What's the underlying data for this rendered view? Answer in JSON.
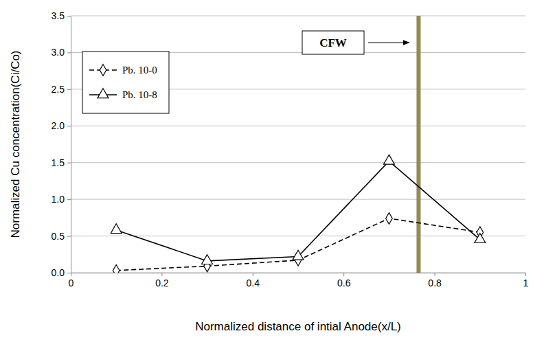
{
  "chart_data": {
    "type": "line",
    "x_label": "Normalized distance of intial Anode(x/L)",
    "y_label": "Normalized Cu concentration(Ci/Co)",
    "x": [
      0.1,
      0.3,
      0.5,
      0.7,
      0.9
    ],
    "series": [
      {
        "name": "Pb. 10-0",
        "color": "#000000",
        "marker": "diamond",
        "line_style": "dashed",
        "values": [
          0.03,
          0.09,
          0.17,
          0.74,
          0.55
        ]
      },
      {
        "name": "Pb. 10-8",
        "color": "#000000",
        "marker": "triangle",
        "line_style": "solid",
        "values": [
          0.58,
          0.16,
          0.22,
          1.52,
          0.45
        ]
      }
    ],
    "xlim": [
      0,
      1
    ],
    "xticks": [
      0,
      0.2,
      0.4,
      0.6,
      0.8,
      1
    ],
    "ylim": [
      0,
      3.5
    ],
    "yticks": [
      {
        "value": 0,
        "label": "0.0"
      },
      0.5,
      {
        "value": 1,
        "label": "1.0"
      },
      1.5,
      {
        "value": 2,
        "label": "2.0"
      },
      2.5,
      {
        "value": 3,
        "label": "3.0"
      },
      3.5
    ],
    "grid": true,
    "legend": "upper left",
    "annotation": {
      "text": "CFW",
      "x": 0.765,
      "color": "#948a54"
    }
  }
}
